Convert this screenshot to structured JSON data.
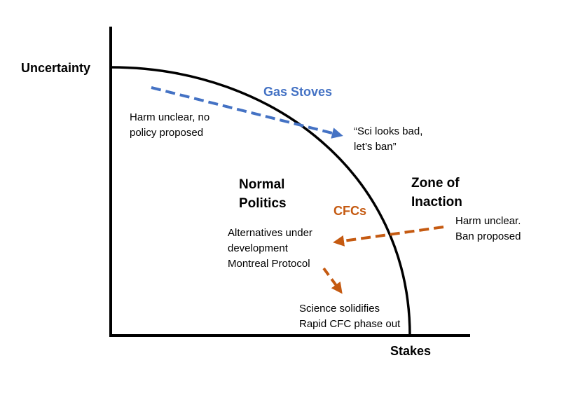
{
  "axes": {
    "y_label": "Uncertainty",
    "x_label": "Stakes"
  },
  "zones": {
    "inside": [
      "Normal",
      "Politics"
    ],
    "outside": [
      "Zone of",
      "Inaction"
    ]
  },
  "cases": {
    "gas_stoves": {
      "title": "Gas Stoves",
      "color": "#4472C4",
      "start_note": [
        "Harm unclear, no",
        "policy proposed"
      ],
      "end_note": [
        "“Sci looks bad,",
        "let’s ban”"
      ]
    },
    "cfcs": {
      "title": "CFCs",
      "color": "#C55A11",
      "start_note": [
        "Harm unclear.",
        "Ban proposed"
      ],
      "middle_note": [
        "Alternatives under",
        "development",
        "Montreal Protocol"
      ],
      "end_note": [
        "Science solidifies",
        "Rapid CFC phase out"
      ]
    }
  },
  "colors": {
    "axis": "#000000",
    "boundary": "#000000"
  }
}
